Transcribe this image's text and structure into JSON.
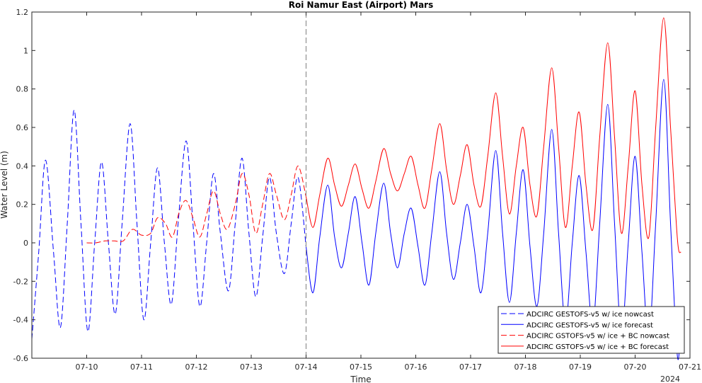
{
  "chart_data": {
    "type": "line",
    "title": "Roi Namur East (Airport) Mars",
    "xlabel": "Time",
    "ylabel": "Water Level (m)",
    "year_label": "2024",
    "xlim": [
      "2024-07-09",
      "2024-07-21"
    ],
    "ylim": [
      -0.6,
      1.2
    ],
    "x_ticks": [
      "07-10",
      "07-11",
      "07-12",
      "07-13",
      "07-14",
      "07-15",
      "07-16",
      "07-17",
      "07-18",
      "07-19",
      "07-20",
      "07-21"
    ],
    "y_ticks": [
      "-0.6",
      "-0.4",
      "-0.2",
      "0",
      "0.2",
      "0.4",
      "0.6",
      "0.8",
      "1",
      "1.2"
    ],
    "nowcast_forecast_divider": "2024-07-14",
    "legend_position": "bottom-right",
    "colors": {
      "blue": "#0000ff",
      "red": "#ff0000",
      "divider": "#808080"
    },
    "series": [
      {
        "name": "ADCIRC GESTOFS-v5 w/ ice nowcast",
        "color": "#0000ff",
        "style": "dashed",
        "points": [
          [
            "07-09 00:00",
            -0.5
          ],
          [
            "07-09 03:00",
            -0.05
          ],
          [
            "07-09 06:00",
            0.43
          ],
          [
            "07-09 09:30",
            -0.05
          ],
          [
            "07-09 12:30",
            -0.44
          ],
          [
            "07-09 15:30",
            0.1
          ],
          [
            "07-09 18:30",
            0.69
          ],
          [
            "07-09 21:30",
            0.1
          ],
          [
            "07-10 00:30",
            -0.46
          ],
          [
            "07-10 03:30",
            0.0
          ],
          [
            "07-10 06:30",
            0.42
          ],
          [
            "07-10 09:30",
            0.0
          ],
          [
            "07-10 12:30",
            -0.37
          ],
          [
            "07-10 15:30",
            0.1
          ],
          [
            "07-10 19:00",
            0.62
          ],
          [
            "07-10 22:00",
            0.1
          ],
          [
            "07-11 01:00",
            -0.4
          ],
          [
            "07-11 04:00",
            0.0
          ],
          [
            "07-11 07:00",
            0.39
          ],
          [
            "07-11 10:00",
            0.0
          ],
          [
            "07-11 13:00",
            -0.32
          ],
          [
            "07-11 16:00",
            0.1
          ],
          [
            "07-11 19:30",
            0.53
          ],
          [
            "07-11 22:30",
            0.1
          ],
          [
            "07-12 01:30",
            -0.33
          ],
          [
            "07-12 04:30",
            0.0
          ],
          [
            "07-12 07:30",
            0.36
          ],
          [
            "07-12 10:30",
            0.05
          ],
          [
            "07-12 14:00",
            -0.25
          ],
          [
            "07-12 17:00",
            0.1
          ],
          [
            "07-12 20:00",
            0.44
          ],
          [
            "07-12 23:00",
            0.05
          ],
          [
            "07-13 02:00",
            -0.28
          ],
          [
            "07-13 05:00",
            0.03
          ],
          [
            "07-13 08:00",
            0.34
          ],
          [
            "07-13 11:00",
            0.05
          ],
          [
            "07-13 14:30",
            -0.16
          ],
          [
            "07-13 17:30",
            0.1
          ],
          [
            "07-13 20:30",
            0.34
          ],
          [
            "07-14 00:00",
            -0.02
          ]
        ]
      },
      {
        "name": "ADCIRC GESTOFS-v5 w/ ice forecast",
        "color": "#0000ff",
        "style": "solid",
        "points": [
          [
            "07-14 00:00",
            -0.02
          ],
          [
            "07-14 03:00",
            -0.26
          ],
          [
            "07-14 06:00",
            0.03
          ],
          [
            "07-14 09:30",
            0.3
          ],
          [
            "07-14 12:30",
            0.03
          ],
          [
            "07-14 15:30",
            -0.13
          ],
          [
            "07-14 18:30",
            0.05
          ],
          [
            "07-14 21:30",
            0.24
          ],
          [
            "07-15 00:30",
            0.0
          ],
          [
            "07-15 03:30",
            -0.22
          ],
          [
            "07-15 06:30",
            0.05
          ],
          [
            "07-15 10:00",
            0.31
          ],
          [
            "07-15 13:00",
            0.05
          ],
          [
            "07-15 16:00",
            -0.13
          ],
          [
            "07-15 19:00",
            0.05
          ],
          [
            "07-15 22:00",
            0.18
          ],
          [
            "07-16 01:00",
            -0.02
          ],
          [
            "07-16 04:00",
            -0.22
          ],
          [
            "07-16 07:00",
            0.05
          ],
          [
            "07-16 10:30",
            0.37
          ],
          [
            "07-16 13:30",
            0.05
          ],
          [
            "07-16 16:30",
            -0.19
          ],
          [
            "07-16 19:30",
            0.0
          ],
          [
            "07-16 22:30",
            0.2
          ],
          [
            "07-17 01:30",
            -0.02
          ],
          [
            "07-17 04:30",
            -0.26
          ],
          [
            "07-17 07:30",
            0.05
          ],
          [
            "07-17 11:00",
            0.48
          ],
          [
            "07-17 14:00",
            0.05
          ],
          [
            "07-17 17:00",
            -0.31
          ],
          [
            "07-17 20:00",
            0.05
          ],
          [
            "07-17 23:00",
            0.38
          ],
          [
            "07-18 02:00",
            -0.02
          ],
          [
            "07-18 05:00",
            -0.33
          ],
          [
            "07-18 08:00",
            0.05
          ],
          [
            "07-18 11:30",
            0.59
          ],
          [
            "07-18 14:30",
            0.05
          ],
          [
            "07-18 17:30",
            -0.42
          ],
          [
            "07-18 20:30",
            0.0
          ],
          [
            "07-18 23:30",
            0.35
          ],
          [
            "07-19 02:30",
            -0.05
          ],
          [
            "07-19 05:30",
            -0.43
          ],
          [
            "07-19 08:30",
            0.1
          ],
          [
            "07-19 12:00",
            0.72
          ],
          [
            "07-19 15:00",
            0.1
          ],
          [
            "07-19 18:00",
            -0.48
          ],
          [
            "07-19 21:00",
            0.0
          ],
          [
            "07-20 00:00",
            0.45
          ],
          [
            "07-20 03:00",
            -0.05
          ],
          [
            "07-20 06:00",
            -0.5
          ],
          [
            "07-20 09:00",
            0.1
          ],
          [
            "07-20 12:30",
            0.85
          ],
          [
            "07-20 15:30",
            0.1
          ],
          [
            "07-20 18:30",
            -0.59
          ],
          [
            "07-20 20:00",
            -0.4
          ]
        ]
      },
      {
        "name": "ADCIRC GSTOFS-v5 w/ ice + BC nowcast",
        "color": "#ff0000",
        "style": "dashed",
        "points": [
          [
            "07-10 00:00",
            0.0
          ],
          [
            "07-10 04:00",
            0.0
          ],
          [
            "07-10 08:00",
            0.01
          ],
          [
            "07-10 12:00",
            0.01
          ],
          [
            "07-10 16:00",
            0.01
          ],
          [
            "07-10 20:00",
            0.07
          ],
          [
            "07-11 00:00",
            0.04
          ],
          [
            "07-11 04:00",
            0.05
          ],
          [
            "07-11 07:00",
            0.13
          ],
          [
            "07-11 10:30",
            0.1
          ],
          [
            "07-11 13:30",
            0.03
          ],
          [
            "07-11 16:30",
            0.16
          ],
          [
            "07-11 19:30",
            0.22
          ],
          [
            "07-11 22:30",
            0.13
          ],
          [
            "07-12 01:30",
            0.03
          ],
          [
            "07-12 04:30",
            0.15
          ],
          [
            "07-12 07:30",
            0.27
          ],
          [
            "07-12 10:30",
            0.15
          ],
          [
            "07-12 13:30",
            0.07
          ],
          [
            "07-12 17:00",
            0.2
          ],
          [
            "07-12 20:00",
            0.36
          ],
          [
            "07-12 23:00",
            0.25
          ],
          [
            "07-13 02:00",
            0.05
          ],
          [
            "07-13 05:00",
            0.2
          ],
          [
            "07-13 08:00",
            0.36
          ],
          [
            "07-13 11:00",
            0.25
          ],
          [
            "07-13 14:30",
            0.12
          ],
          [
            "07-13 17:30",
            0.25
          ],
          [
            "07-13 20:30",
            0.4
          ],
          [
            "07-14 00:00",
            0.24
          ]
        ]
      },
      {
        "name": "ADCIRC GSTOFS-v5 w/ ice + BC forecast",
        "color": "#ff0000",
        "style": "solid",
        "points": [
          [
            "07-14 00:00",
            0.24
          ],
          [
            "07-14 03:00",
            0.08
          ],
          [
            "07-14 06:00",
            0.25
          ],
          [
            "07-14 09:30",
            0.44
          ],
          [
            "07-14 12:30",
            0.3
          ],
          [
            "07-14 15:30",
            0.19
          ],
          [
            "07-14 18:30",
            0.3
          ],
          [
            "07-14 21:30",
            0.41
          ],
          [
            "07-15 00:30",
            0.28
          ],
          [
            "07-15 03:30",
            0.18
          ],
          [
            "07-15 06:30",
            0.32
          ],
          [
            "07-15 10:00",
            0.49
          ],
          [
            "07-15 13:00",
            0.36
          ],
          [
            "07-15 16:00",
            0.27
          ],
          [
            "07-15 19:00",
            0.36
          ],
          [
            "07-15 22:00",
            0.45
          ],
          [
            "07-16 01:00",
            0.3
          ],
          [
            "07-16 04:00",
            0.18
          ],
          [
            "07-16 07:00",
            0.38
          ],
          [
            "07-16 10:30",
            0.62
          ],
          [
            "07-16 13:30",
            0.38
          ],
          [
            "07-16 16:30",
            0.2
          ],
          [
            "07-16 19:30",
            0.35
          ],
          [
            "07-16 22:30",
            0.51
          ],
          [
            "07-17 01:30",
            0.3
          ],
          [
            "07-17 04:30",
            0.19
          ],
          [
            "07-17 07:30",
            0.45
          ],
          [
            "07-17 11:00",
            0.78
          ],
          [
            "07-17 14:00",
            0.45
          ],
          [
            "07-17 17:00",
            0.15
          ],
          [
            "07-17 20:00",
            0.4
          ],
          [
            "07-17 23:00",
            0.6
          ],
          [
            "07-18 02:00",
            0.3
          ],
          [
            "07-18 05:00",
            0.14
          ],
          [
            "07-18 08:00",
            0.5
          ],
          [
            "07-18 11:30",
            0.91
          ],
          [
            "07-18 14:30",
            0.5
          ],
          [
            "07-18 17:30",
            0.08
          ],
          [
            "07-18 20:30",
            0.4
          ],
          [
            "07-18 23:30",
            0.68
          ],
          [
            "07-19 02:30",
            0.3
          ],
          [
            "07-19 05:30",
            0.07
          ],
          [
            "07-19 08:30",
            0.55
          ],
          [
            "07-19 12:00",
            1.04
          ],
          [
            "07-19 15:00",
            0.55
          ],
          [
            "07-19 18:00",
            0.05
          ],
          [
            "07-19 21:00",
            0.4
          ],
          [
            "07-20 00:00",
            0.79
          ],
          [
            "07-20 03:00",
            0.3
          ],
          [
            "07-20 06:00",
            0.03
          ],
          [
            "07-20 09:00",
            0.6
          ],
          [
            "07-20 12:30",
            1.17
          ],
          [
            "07-20 15:30",
            0.6
          ],
          [
            "07-20 18:30",
            0.02
          ],
          [
            "07-20 20:00",
            -0.05
          ]
        ]
      }
    ]
  }
}
